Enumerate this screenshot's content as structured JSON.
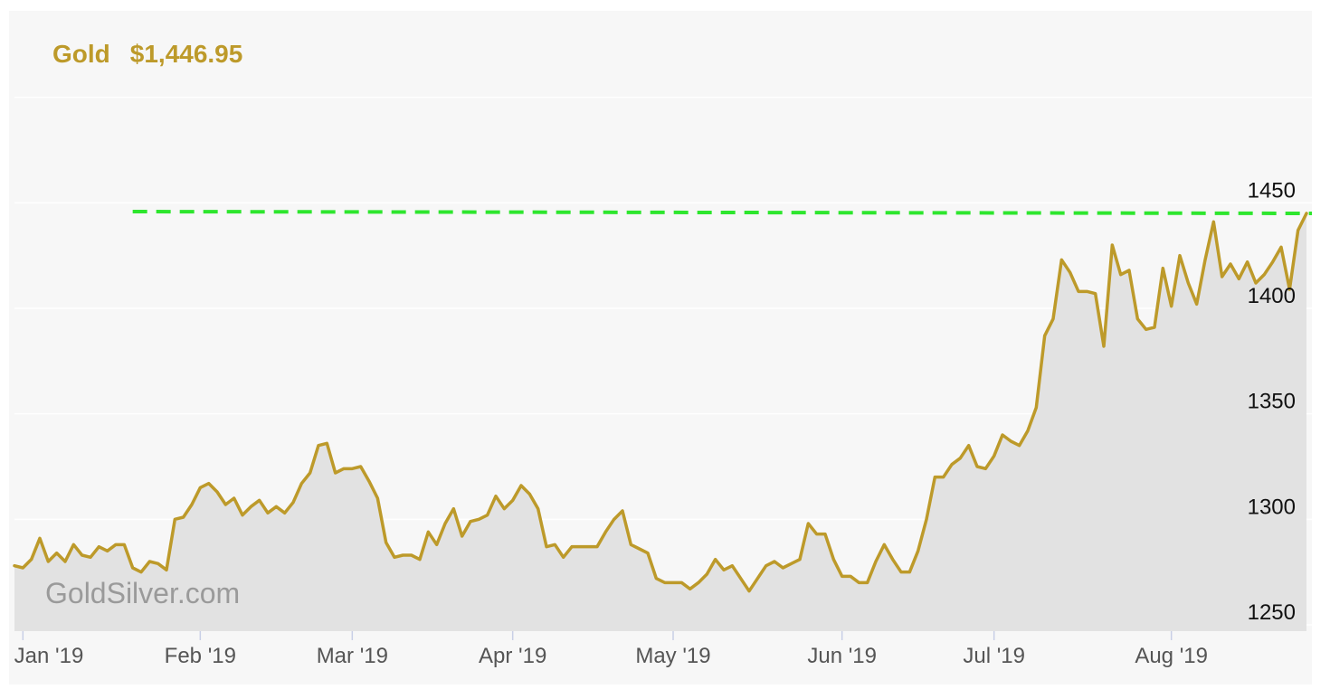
{
  "header": {
    "asset": "Gold",
    "price": "$1,446.95"
  },
  "watermark": "GoldSilver.com",
  "colors": {
    "gold": "#bd9a2a",
    "area": "#e2e2e2",
    "reference": "#2ee62e",
    "grid": "#ffffff",
    "background": "#f7f7f7"
  },
  "chart_data": {
    "type": "area",
    "title": "",
    "xlabel": "",
    "ylabel": "",
    "ylim": [
      1247,
      1496
    ],
    "y_ticks": [
      1250,
      1300,
      1350,
      1400,
      1450
    ],
    "x_ticks": [
      {
        "label": "Jan '19",
        "index": 1
      },
      {
        "label": "Feb '19",
        "index": 22
      },
      {
        "label": "Mar '19",
        "index": 40
      },
      {
        "label": "Apr '19",
        "index": 59
      },
      {
        "label": "May '19",
        "index": 78
      },
      {
        "label": "Jun '19",
        "index": 98
      },
      {
        "label": "Jul '19",
        "index": 116
      },
      {
        "label": "Aug '19",
        "index": 137
      }
    ],
    "reference_line": {
      "value": 1445,
      "start_index": 14,
      "end_index": 138
    },
    "grid": true,
    "legend": "none",
    "series": [
      {
        "values": [
          1278,
          1277,
          1281,
          1291,
          1280,
          1284,
          1280,
          1288,
          1283,
          1282,
          1287,
          1285,
          1288,
          1288,
          1277,
          1275,
          1280,
          1279,
          1276,
          1300,
          1301,
          1307,
          1315,
          1317,
          1313,
          1307,
          1310,
          1302,
          1306,
          1309,
          1303,
          1306,
          1303,
          1308,
          1317,
          1322,
          1335,
          1336,
          1322,
          1324,
          1324,
          1325,
          1318,
          1310,
          1289,
          1282,
          1283,
          1283,
          1281,
          1294,
          1288,
          1298,
          1305,
          1292,
          1299,
          1300,
          1302,
          1311,
          1305,
          1309,
          1316,
          1312,
          1305,
          1287,
          1288,
          1282,
          1287,
          1287,
          1287,
          1287,
          1294,
          1300,
          1304,
          1288,
          1286,
          1284,
          1272,
          1270,
          1270,
          1270,
          1267,
          1270,
          1274,
          1281,
          1276,
          1278,
          1272,
          1266,
          1272,
          1278,
          1280,
          1277,
          1279,
          1281,
          1298,
          1293,
          1293,
          1281,
          1273,
          1273,
          1270,
          1270,
          1280,
          1288,
          1281,
          1275,
          1275,
          1285,
          1300,
          1320,
          1320,
          1326,
          1329,
          1335,
          1325,
          1324,
          1330,
          1340,
          1337,
          1335,
          1342,
          1353,
          1387,
          1395,
          1423,
          1417,
          1408,
          1408,
          1407,
          1382,
          1430,
          1416,
          1418,
          1395,
          1390,
          1391,
          1419,
          1401,
          1425,
          1412,
          1402,
          1423,
          1441,
          1415,
          1421,
          1414,
          1422,
          1412,
          1416,
          1422,
          1429,
          1409,
          1437,
          1445
        ]
      }
    ]
  }
}
